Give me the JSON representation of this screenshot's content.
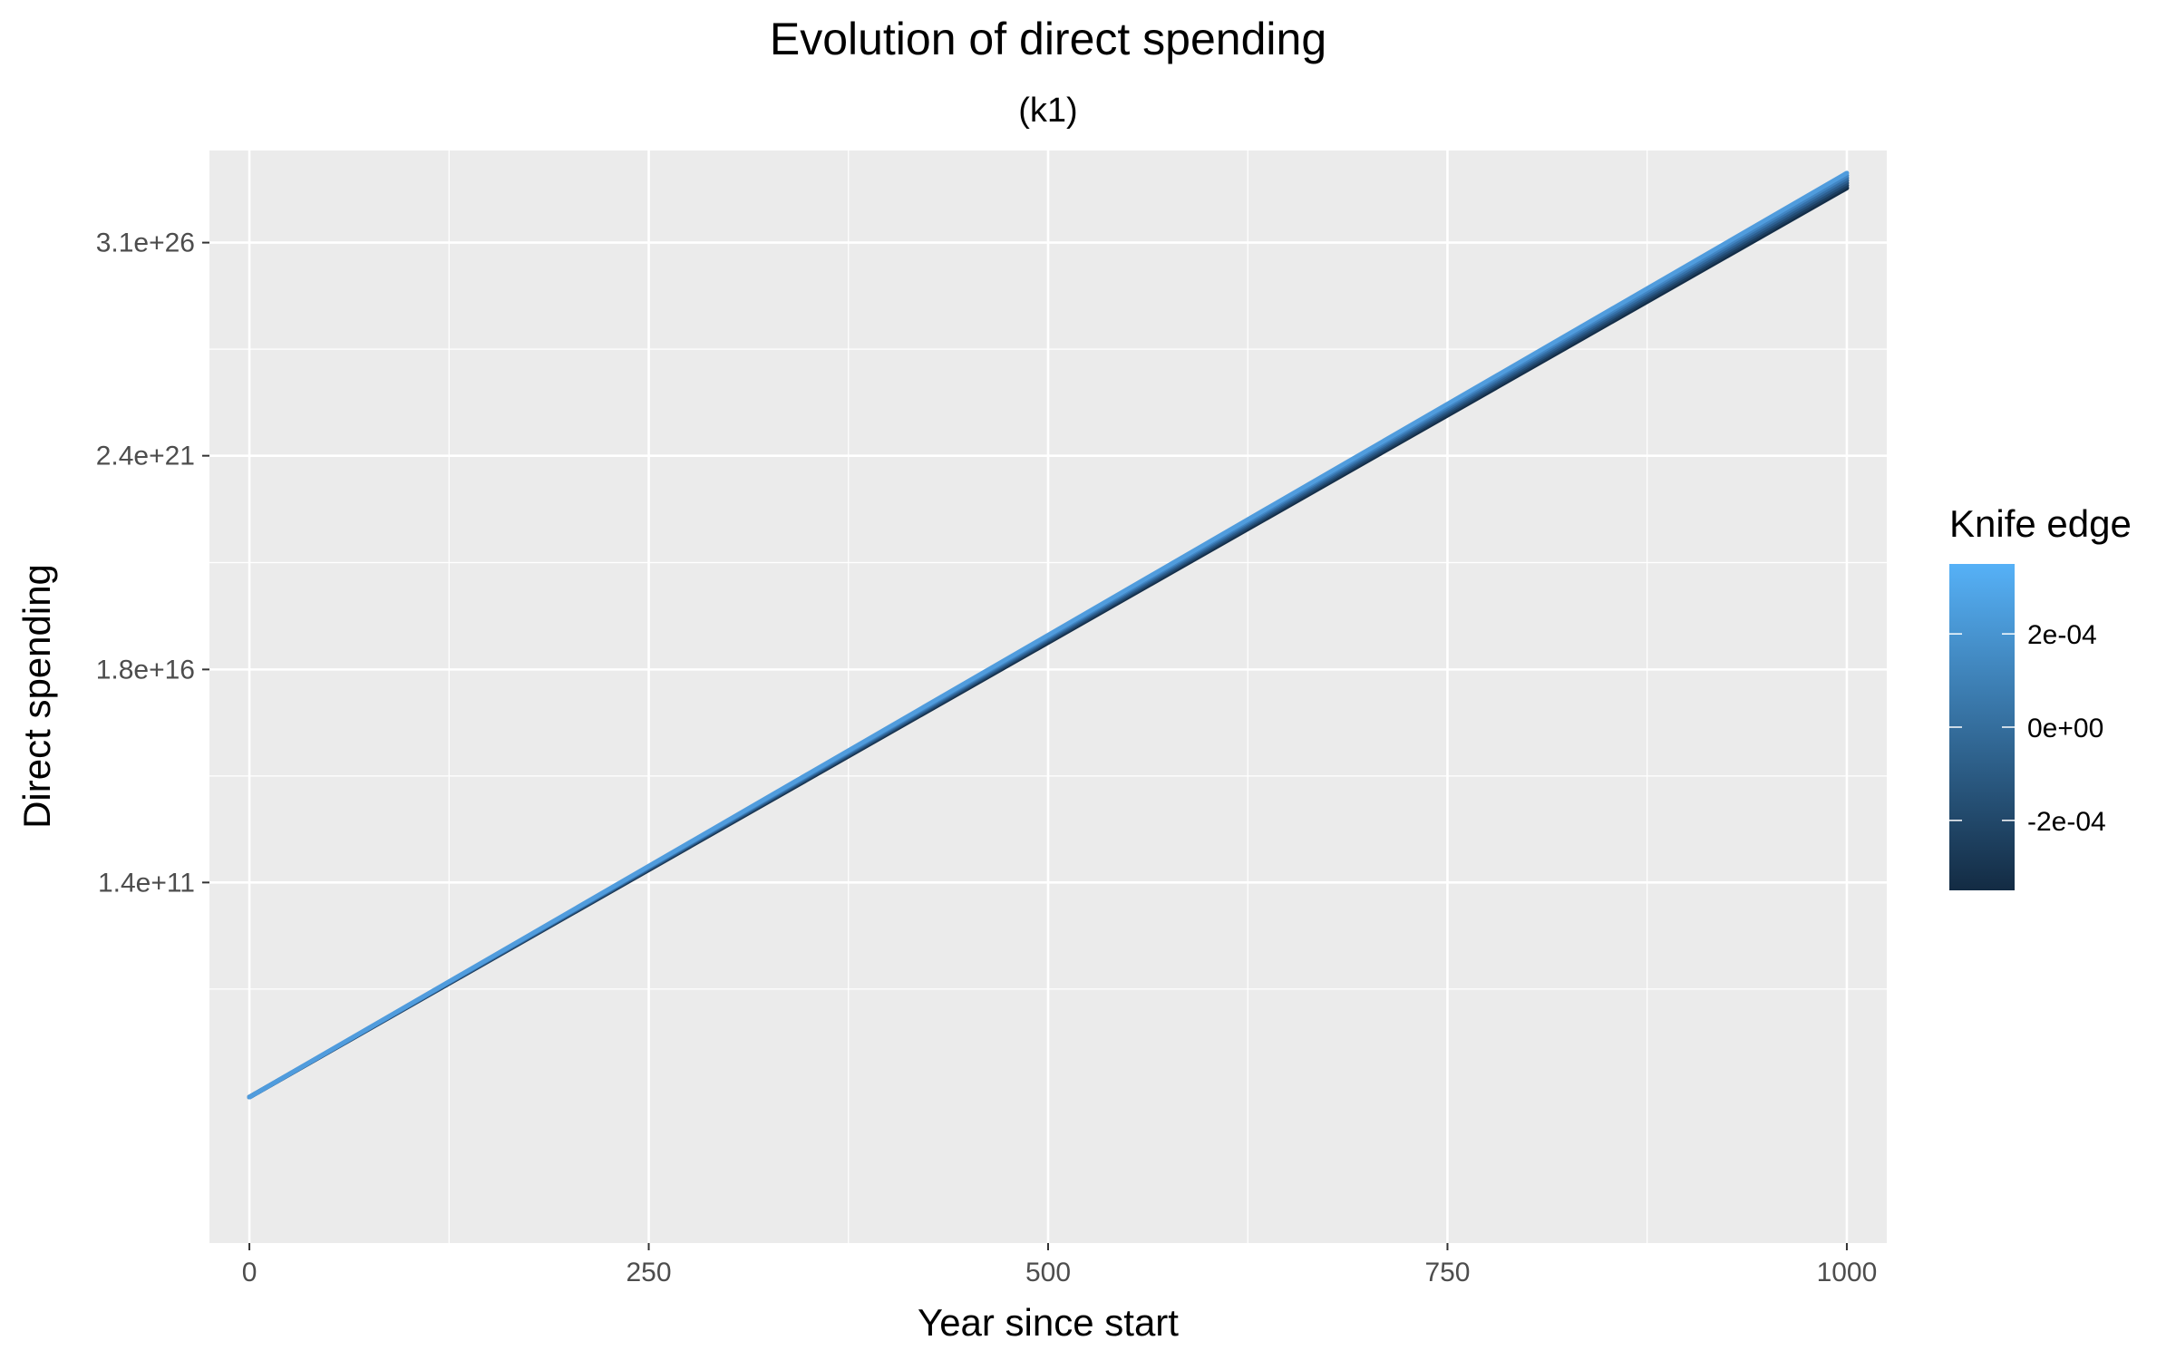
{
  "chart_data": {
    "type": "line",
    "title": "Evolution of  direct spending",
    "subtitle": "(k1)",
    "xlabel": "Year since start",
    "ylabel": "Direct spending",
    "y_scale": "log",
    "xlim": [
      -25,
      1025
    ],
    "ylim_log10": [
      2.5,
      28.7
    ],
    "x_ticks": [
      0,
      250,
      500,
      750,
      1000
    ],
    "x_tick_labels": [
      "0",
      "250",
      "500",
      "750",
      "1000"
    ],
    "y_ticks_log10": [
      11.146,
      16.255,
      21.38,
      26.491
    ],
    "y_tick_labels": [
      "1.4e+11",
      "1.8e+16",
      "2.4e+21",
      "3.1e+26"
    ],
    "grid": true,
    "legend": {
      "title": "Knife edge",
      "placement": "right",
      "type": "colorbar",
      "range": [
        -0.00035,
        0.00035
      ],
      "ticks": [
        0.0002,
        0,
        -0.0002
      ],
      "tick_labels": [
        "2e-04",
        "0e+00",
        "-2e-04"
      ],
      "color_low": "#132B43",
      "color_high": "#56B1F7"
    },
    "series": [
      {
        "knife_edge": -0.0003,
        "color": "#142E48",
        "x": [
          0,
          1000
        ],
        "y_log10": [
          6.0,
          27.8
        ]
      },
      {
        "knife_edge": -0.0002,
        "color": "#1C3D5E",
        "x": [
          0,
          1000
        ],
        "y_log10": [
          6.0,
          27.86
        ]
      },
      {
        "knife_edge": -0.0001,
        "color": "#244E77",
        "x": [
          0,
          1000
        ],
        "y_log10": [
          6.0,
          27.92
        ]
      },
      {
        "knife_edge": 0,
        "color": "#2D5F90",
        "x": [
          0,
          1000
        ],
        "y_log10": [
          6.0,
          27.98
        ]
      },
      {
        "knife_edge": 0.0001,
        "color": "#3672AA",
        "x": [
          0,
          1000
        ],
        "y_log10": [
          6.0,
          28.04
        ]
      },
      {
        "knife_edge": 0.0002,
        "color": "#4286C4",
        "x": [
          0,
          1000
        ],
        "y_log10": [
          6.0,
          28.1
        ]
      },
      {
        "knife_edge": 0.0003,
        "color": "#509CDD",
        "x": [
          0,
          1000
        ],
        "y_log10": [
          6.0,
          28.16
        ]
      }
    ]
  },
  "colors": {
    "panel_background": "#EBEBEB",
    "grid_major": "#FFFFFF",
    "axis_text": "#4D4D4D",
    "title_text": "#000000"
  }
}
